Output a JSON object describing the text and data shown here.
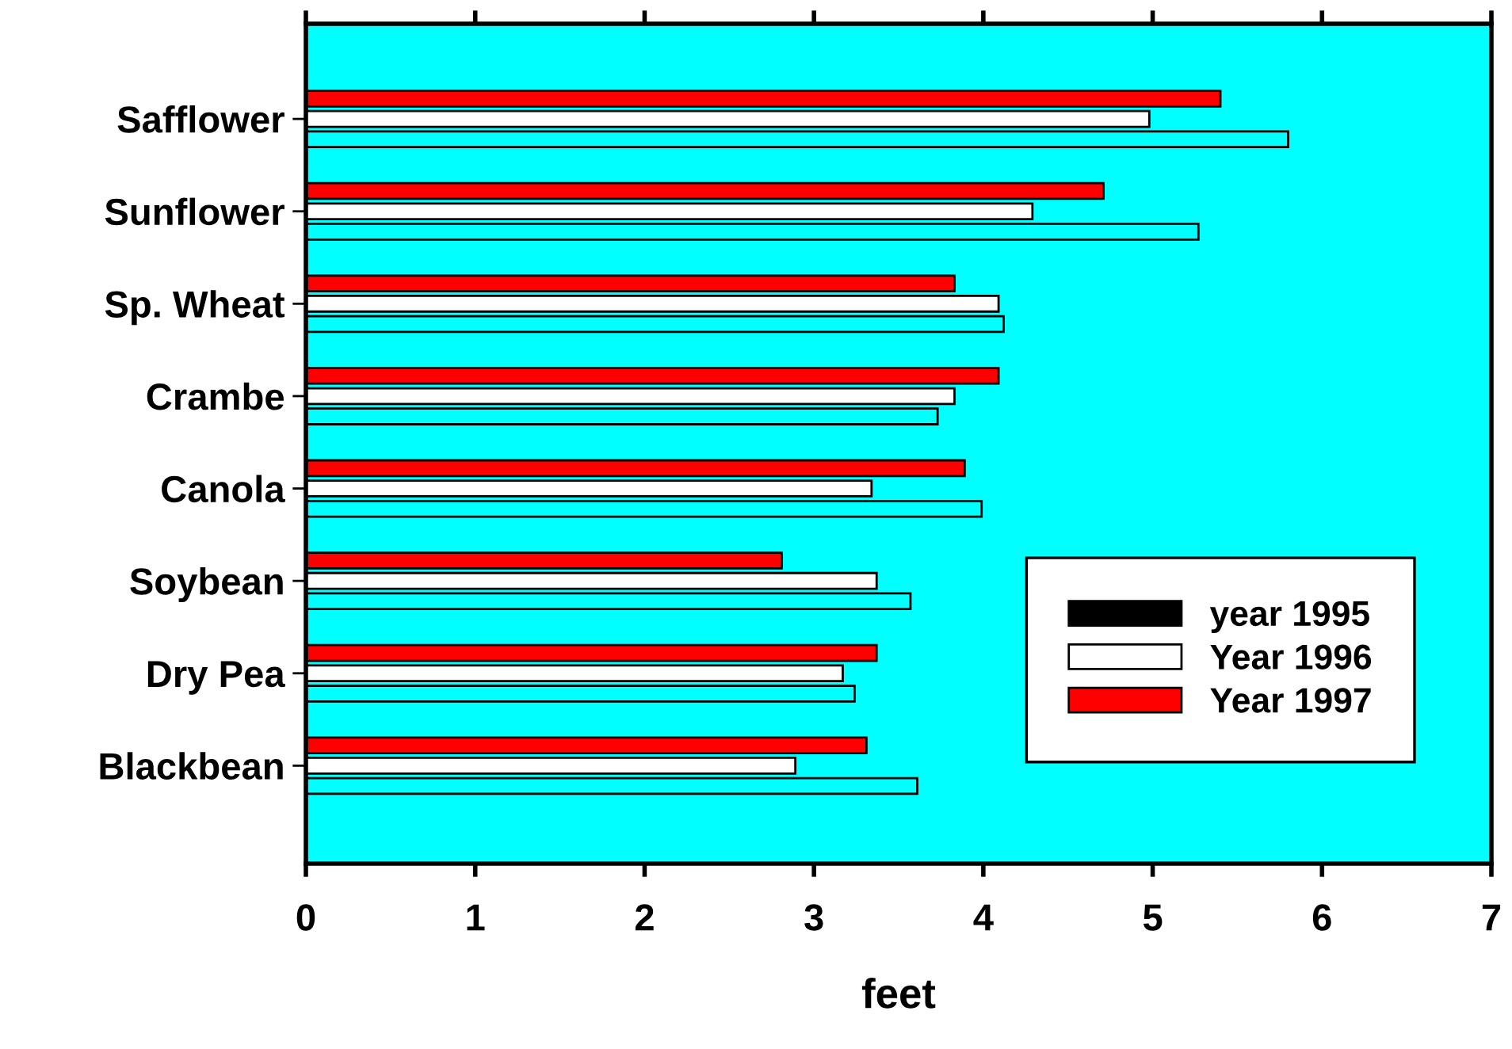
{
  "chart_data": {
    "type": "bar",
    "orientation": "horizontal",
    "xlabel": "feet",
    "categories": [
      "Safflower",
      "Sunflower",
      "Sp. Wheat",
      "Crambe",
      "Canola",
      "Soybean",
      "Dry Pea",
      "Blackbean"
    ],
    "series": [
      {
        "name": "year 1995",
        "color": "#000000",
        "values": [
          5.8,
          5.27,
          4.12,
          3.73,
          3.99,
          3.57,
          3.24,
          3.61
        ]
      },
      {
        "name": "Year 1996",
        "color": "#ffffff",
        "values": [
          4.98,
          4.29,
          4.09,
          3.83,
          3.34,
          3.37,
          3.17,
          2.89
        ]
      },
      {
        "name": "Year 1997",
        "color": "#ff0000",
        "values": [
          5.4,
          4.71,
          3.83,
          4.09,
          3.89,
          2.81,
          3.37,
          3.31
        ]
      }
    ],
    "xlim": [
      0,
      7
    ],
    "xticks": [
      0,
      1,
      2,
      3,
      4,
      5,
      6,
      7
    ],
    "grid": false,
    "legend": "bottom right"
  }
}
